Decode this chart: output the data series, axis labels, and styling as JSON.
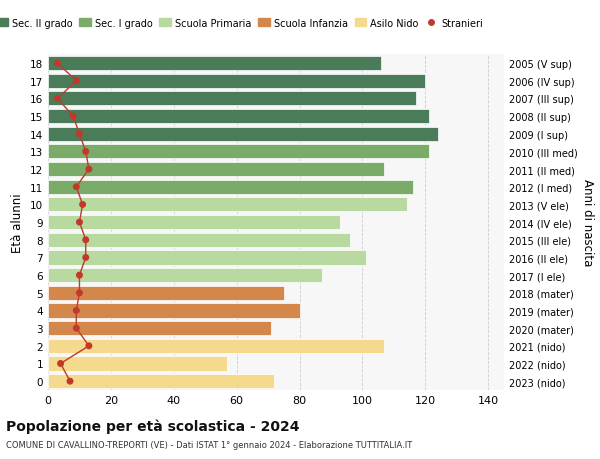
{
  "ages": [
    18,
    17,
    16,
    15,
    14,
    13,
    12,
    11,
    10,
    9,
    8,
    7,
    6,
    5,
    4,
    3,
    2,
    1,
    0
  ],
  "years_by_age": {
    "18": "2005 (V sup)",
    "17": "2006 (IV sup)",
    "16": "2007 (III sup)",
    "15": "2008 (II sup)",
    "14": "2009 (I sup)",
    "13": "2010 (III med)",
    "12": "2011 (II med)",
    "11": "2012 (I med)",
    "10": "2013 (V ele)",
    "9": "2014 (IV ele)",
    "8": "2015 (III ele)",
    "7": "2016 (II ele)",
    "6": "2017 (I ele)",
    "5": "2018 (mater)",
    "4": "2019 (mater)",
    "3": "2020 (mater)",
    "2": "2021 (nido)",
    "1": "2022 (nido)",
    "0": "2023 (nido)"
  },
  "bar_values_by_age": {
    "18": 106,
    "17": 120,
    "16": 117,
    "15": 121,
    "14": 124,
    "13": 121,
    "12": 107,
    "11": 116,
    "10": 114,
    "9": 93,
    "8": 96,
    "7": 101,
    "6": 87,
    "5": 75,
    "4": 80,
    "3": 71,
    "2": 107,
    "1": 57,
    "0": 72
  },
  "stranieri_by_age": {
    "18": 3,
    "17": 9,
    "16": 3,
    "15": 8,
    "14": 10,
    "13": 12,
    "12": 13,
    "11": 9,
    "10": 11,
    "9": 10,
    "8": 12,
    "7": 12,
    "6": 10,
    "5": 10,
    "4": 9,
    "3": 9,
    "2": 13,
    "1": 4,
    "0": 7
  },
  "bar_colors_by_age": {
    "18": "#4a7c59",
    "17": "#4a7c59",
    "16": "#4a7c59",
    "15": "#4a7c59",
    "14": "#4a7c59",
    "13": "#7aab68",
    "12": "#7aab68",
    "11": "#7aab68",
    "10": "#b8d9a0",
    "9": "#b8d9a0",
    "8": "#b8d9a0",
    "7": "#b8d9a0",
    "6": "#b8d9a0",
    "5": "#d4874a",
    "4": "#d4874a",
    "3": "#d4874a",
    "2": "#f5d98c",
    "1": "#f5d98c",
    "0": "#f5d98c"
  },
  "legend_labels": [
    "Sec. II grado",
    "Sec. I grado",
    "Scuola Primaria",
    "Scuola Infanzia",
    "Asilo Nido",
    "Stranieri"
  ],
  "legend_colors": [
    "#4a7c59",
    "#7aab68",
    "#b8d9a0",
    "#d4874a",
    "#f5d98c",
    "#c0392b"
  ],
  "title": "Popolazione per età scolastica - 2024",
  "subtitle": "COMUNE DI CAVALLINO-TREPORTI (VE) - Dati ISTAT 1° gennaio 2024 - Elaborazione TUTTITALIA.IT",
  "ylabel": "Età alunni",
  "right_ylabel": "Anni di nascita",
  "xlabel_ticks": [
    0,
    20,
    40,
    60,
    80,
    100,
    120,
    140
  ],
  "xlim": [
    0,
    145
  ],
  "background_color": "#ffffff",
  "plot_bg_color": "#f7f7f7",
  "grid_color": "#cccccc",
  "stranieri_color": "#c0392b"
}
